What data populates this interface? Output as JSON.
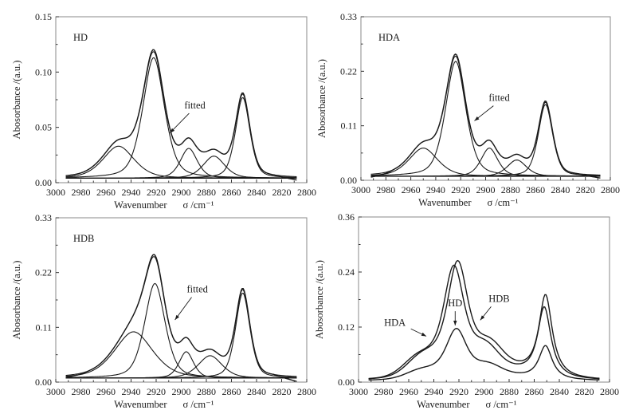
{
  "figure": {
    "panels_order": [
      "HD",
      "HDA",
      "HDB",
      "overlay"
    ]
  },
  "chart_data": [
    {
      "id": "HD",
      "type": "line",
      "title": "",
      "panel_label": "HD",
      "xlabel": "Wavenumber",
      "xlabel_symbol": "σ /cm⁻¹",
      "ylabel": "Abosorbance /(a.u.)",
      "xlim": [
        3000,
        2800
      ],
      "ylim": [
        0,
        0.15
      ],
      "xticks": [
        3000,
        2980,
        2960,
        2940,
        2920,
        2900,
        2880,
        2860,
        2840,
        2820,
        2800
      ],
      "yticks": [
        "0.00",
        "0.05",
        "0.10",
        "0.15"
      ],
      "ytick_values": [
        0,
        0.05,
        0.1,
        0.15
      ],
      "x_range": [
        2992,
        2808
      ],
      "baseline": 0.004,
      "annotation": {
        "text": "fitted",
        "points_to": [
          2909,
          0.045
        ],
        "text_at": [
          2895,
          0.067
        ]
      },
      "measured_peak": {
        "x": 2922,
        "y": 0.118
      },
      "components": [
        {
          "center": 2950,
          "height": 0.029,
          "width": 13
        },
        {
          "center": 2922,
          "height": 0.109,
          "width": 9
        },
        {
          "center": 2894,
          "height": 0.027,
          "width": 7
        },
        {
          "center": 2874,
          "height": 0.02,
          "width": 9
        },
        {
          "center": 2851,
          "height": 0.073,
          "width": 6
        }
      ],
      "measured_offset": {
        "low_end": 0.0,
        "high_end": -0.003
      }
    },
    {
      "id": "HDA",
      "type": "line",
      "title": "",
      "panel_label": "HDA",
      "xlabel": "Wavenumber",
      "xlabel_symbol": "σ /cm⁻¹",
      "ylabel": "Abosorbance /(a.u.)",
      "xlim": [
        3000,
        2800
      ],
      "ylim": [
        0,
        0.33
      ],
      "xticks": [
        3000,
        2980,
        2960,
        2940,
        2920,
        2900,
        2880,
        2860,
        2840,
        2820,
        2800
      ],
      "yticks": [
        "0.00",
        "0.11",
        "0.22",
        "0.33"
      ],
      "ytick_values": [
        0,
        0.11,
        0.22,
        0.33
      ],
      "x_range": [
        2992,
        2808
      ],
      "baseline": 0.008,
      "annotation": {
        "text": "fitted",
        "points_to": [
          2909,
          0.12
        ],
        "text_at": [
          2895,
          0.16
        ]
      },
      "measured_peak": {
        "x": 2924,
        "y": 0.252
      },
      "components": [
        {
          "center": 2950,
          "height": 0.057,
          "width": 12
        },
        {
          "center": 2924,
          "height": 0.232,
          "width": 8.5
        },
        {
          "center": 2897,
          "height": 0.057,
          "width": 7
        },
        {
          "center": 2875,
          "height": 0.033,
          "width": 8
        },
        {
          "center": 2852,
          "height": 0.145,
          "width": 6
        }
      ],
      "measured_offset": {
        "low_end": -0.006,
        "high_end": -0.006
      }
    },
    {
      "id": "HDB",
      "type": "line",
      "title": "",
      "panel_label": "HDB",
      "xlabel": "Wavenumber",
      "xlabel_symbol": "σ /cm⁻¹",
      "ylabel": "Abosorbance /(a.u.)",
      "xlim": [
        3000,
        2800
      ],
      "ylim": [
        0,
        0.33
      ],
      "xticks": [
        3000,
        2980,
        2960,
        2940,
        2920,
        2900,
        2880,
        2860,
        2840,
        2820,
        2800
      ],
      "yticks": [
        "0.00",
        "0.11",
        "0.22",
        "0.33"
      ],
      "ytick_values": [
        0,
        0.11,
        0.22,
        0.33
      ],
      "x_range": [
        2992,
        2808
      ],
      "baseline": 0.008,
      "annotation": {
        "text": "fitted",
        "points_to": [
          2905,
          0.125
        ],
        "text_at": [
          2893,
          0.18
        ]
      },
      "measured_peak": {
        "x": 2922,
        "y": 0.264
      },
      "components": [
        {
          "center": 2938,
          "height": 0.093,
          "width": 16
        },
        {
          "center": 2921,
          "height": 0.19,
          "width": 8.5
        },
        {
          "center": 2896,
          "height": 0.053,
          "width": 6
        },
        {
          "center": 2877,
          "height": 0.045,
          "width": 10
        },
        {
          "center": 2851,
          "height": 0.171,
          "width": 6
        }
      ],
      "measured_offset": {
        "low_end": -0.004,
        "high_end": -0.01
      }
    },
    {
      "id": "overlay",
      "type": "line",
      "title": "",
      "panel_label": "",
      "xlabel": "Wavenumber",
      "xlabel_symbol": "σ /cm⁻¹",
      "ylabel": "Abosorbance /(a.u.)",
      "xlim": [
        3000,
        2800
      ],
      "ylim": [
        0,
        0.36
      ],
      "xticks": [
        3000,
        2980,
        2960,
        2940,
        2920,
        2900,
        2880,
        2860,
        2840,
        2820,
        2800
      ],
      "yticks": [
        "0.00",
        "0.12",
        "0.24",
        "0.36"
      ],
      "ytick_values": [
        0,
        0.12,
        0.24,
        0.36
      ],
      "x_range": [
        2992,
        2808
      ],
      "series": [
        {
          "name": "HD",
          "peak1": {
            "x": 2922,
            "y": 0.117
          },
          "valley": {
            "x": 2877,
            "y": 0.024
          },
          "peak2": {
            "x": 2851,
            "y": 0.081
          },
          "label_at": [
            2923,
            0.165
          ],
          "arrow_to": [
            2923,
            0.12
          ]
        },
        {
          "name": "HDA",
          "peak1": {
            "x": 2924,
            "y": 0.255
          },
          "valley": {
            "x": 2877,
            "y": 0.046
          },
          "peak2": {
            "x": 2852,
            "y": 0.161
          },
          "label_at": [
            2971,
            0.123
          ],
          "arrow_to": [
            2946,
            0.1
          ]
        },
        {
          "name": "HDB",
          "peak1": {
            "x": 2921,
            "y": 0.265
          },
          "valley": {
            "x": 2876,
            "y": 0.054
          },
          "peak2": {
            "x": 2851,
            "y": 0.187
          },
          "label_at": [
            2888,
            0.175
          ],
          "arrow_to": [
            2903,
            0.135
          ]
        }
      ]
    }
  ]
}
